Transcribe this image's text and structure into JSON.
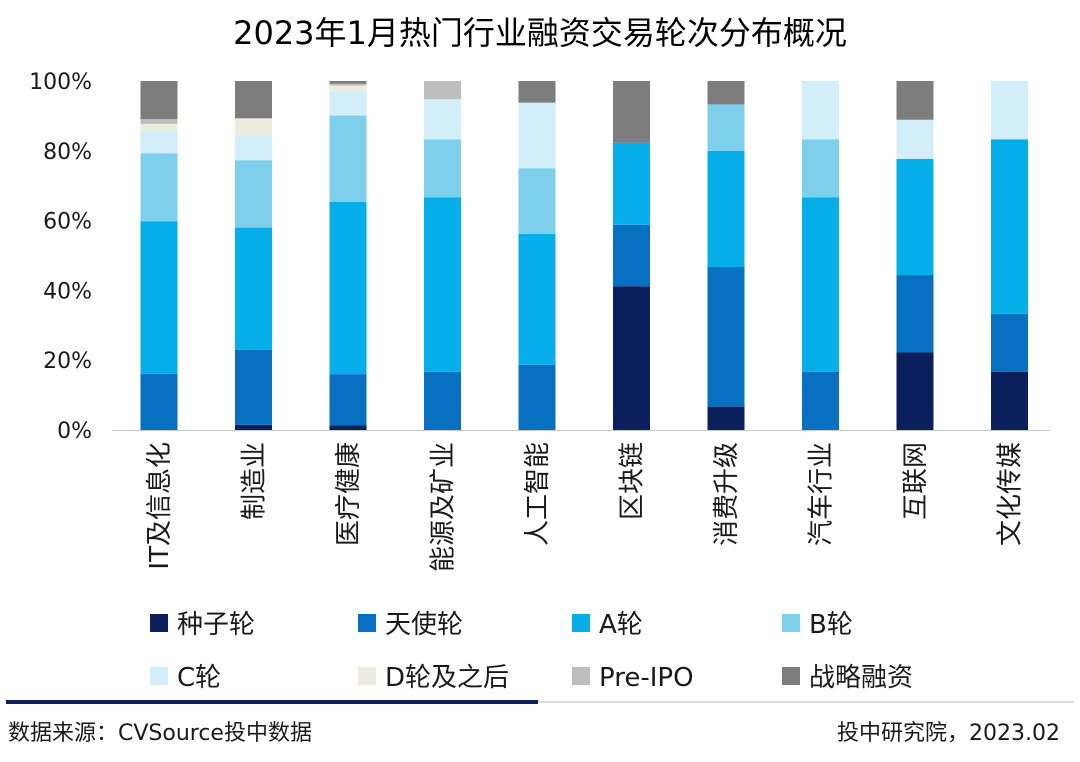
{
  "chart_data": {
    "type": "bar",
    "stacked": true,
    "title": "2023年1月热门行业融资交易轮次分布概况",
    "xlabel": "",
    "ylabel": "",
    "ylim": [
      0,
      100
    ],
    "y_ticks": [
      "0%",
      "20%",
      "40%",
      "60%",
      "80%",
      "100%"
    ],
    "y_tick_values": [
      0,
      20,
      40,
      60,
      80,
      100
    ],
    "categories": [
      "IT及信息化",
      "制造业",
      "医疗健康",
      "能源及矿业",
      "人工智能",
      "区块链",
      "消费升级",
      "汽车行业",
      "互联网",
      "文化传媒"
    ],
    "series": [
      {
        "name": "种子轮",
        "color": "#0a1f5c",
        "values": [
          0,
          1.5,
          1.3,
          0,
          0,
          41.2,
          6.7,
          0,
          22.2,
          16.7
        ]
      },
      {
        "name": "天使轮",
        "color": "#0870c0",
        "values": [
          16.1,
          21.5,
          14.7,
          16.7,
          18.7,
          17.6,
          40.0,
          16.7,
          22.2,
          16.6
        ]
      },
      {
        "name": "A轮",
        "color": "#06aeea",
        "values": [
          43.7,
          35.0,
          49.4,
          50.0,
          37.5,
          23.5,
          33.3,
          50.0,
          33.3,
          50.0
        ]
      },
      {
        "name": "B轮",
        "color": "#7dcfec",
        "values": [
          19.5,
          19.3,
          24.7,
          16.6,
          18.8,
          0,
          13.3,
          16.6,
          0,
          0
        ]
      },
      {
        "name": "C轮",
        "color": "#d2eef8",
        "values": [
          6.6,
          7.0,
          7.0,
          11.5,
          18.8,
          0,
          0,
          16.7,
          11.2,
          16.7
        ]
      },
      {
        "name": "D轮及之后",
        "color": "#ececdf",
        "values": [
          1.8,
          5.0,
          1.6,
          0,
          0,
          0,
          0,
          0,
          0,
          0
        ]
      },
      {
        "name": "Pre-IPO",
        "color": "#bdbdbd",
        "values": [
          1.4,
          0,
          0.5,
          5.2,
          0,
          0,
          0,
          0,
          0,
          0
        ]
      },
      {
        "name": "战略融资",
        "color": "#7d7d7d",
        "values": [
          10.9,
          10.7,
          0.8,
          0,
          6.2,
          17.7,
          6.7,
          0,
          11.1,
          0
        ]
      }
    ],
    "grid": false,
    "legend_position": "bottom"
  },
  "footer": {
    "source": "数据来源：CVSource投中数据",
    "credit": "投中研究院，2023.02"
  }
}
